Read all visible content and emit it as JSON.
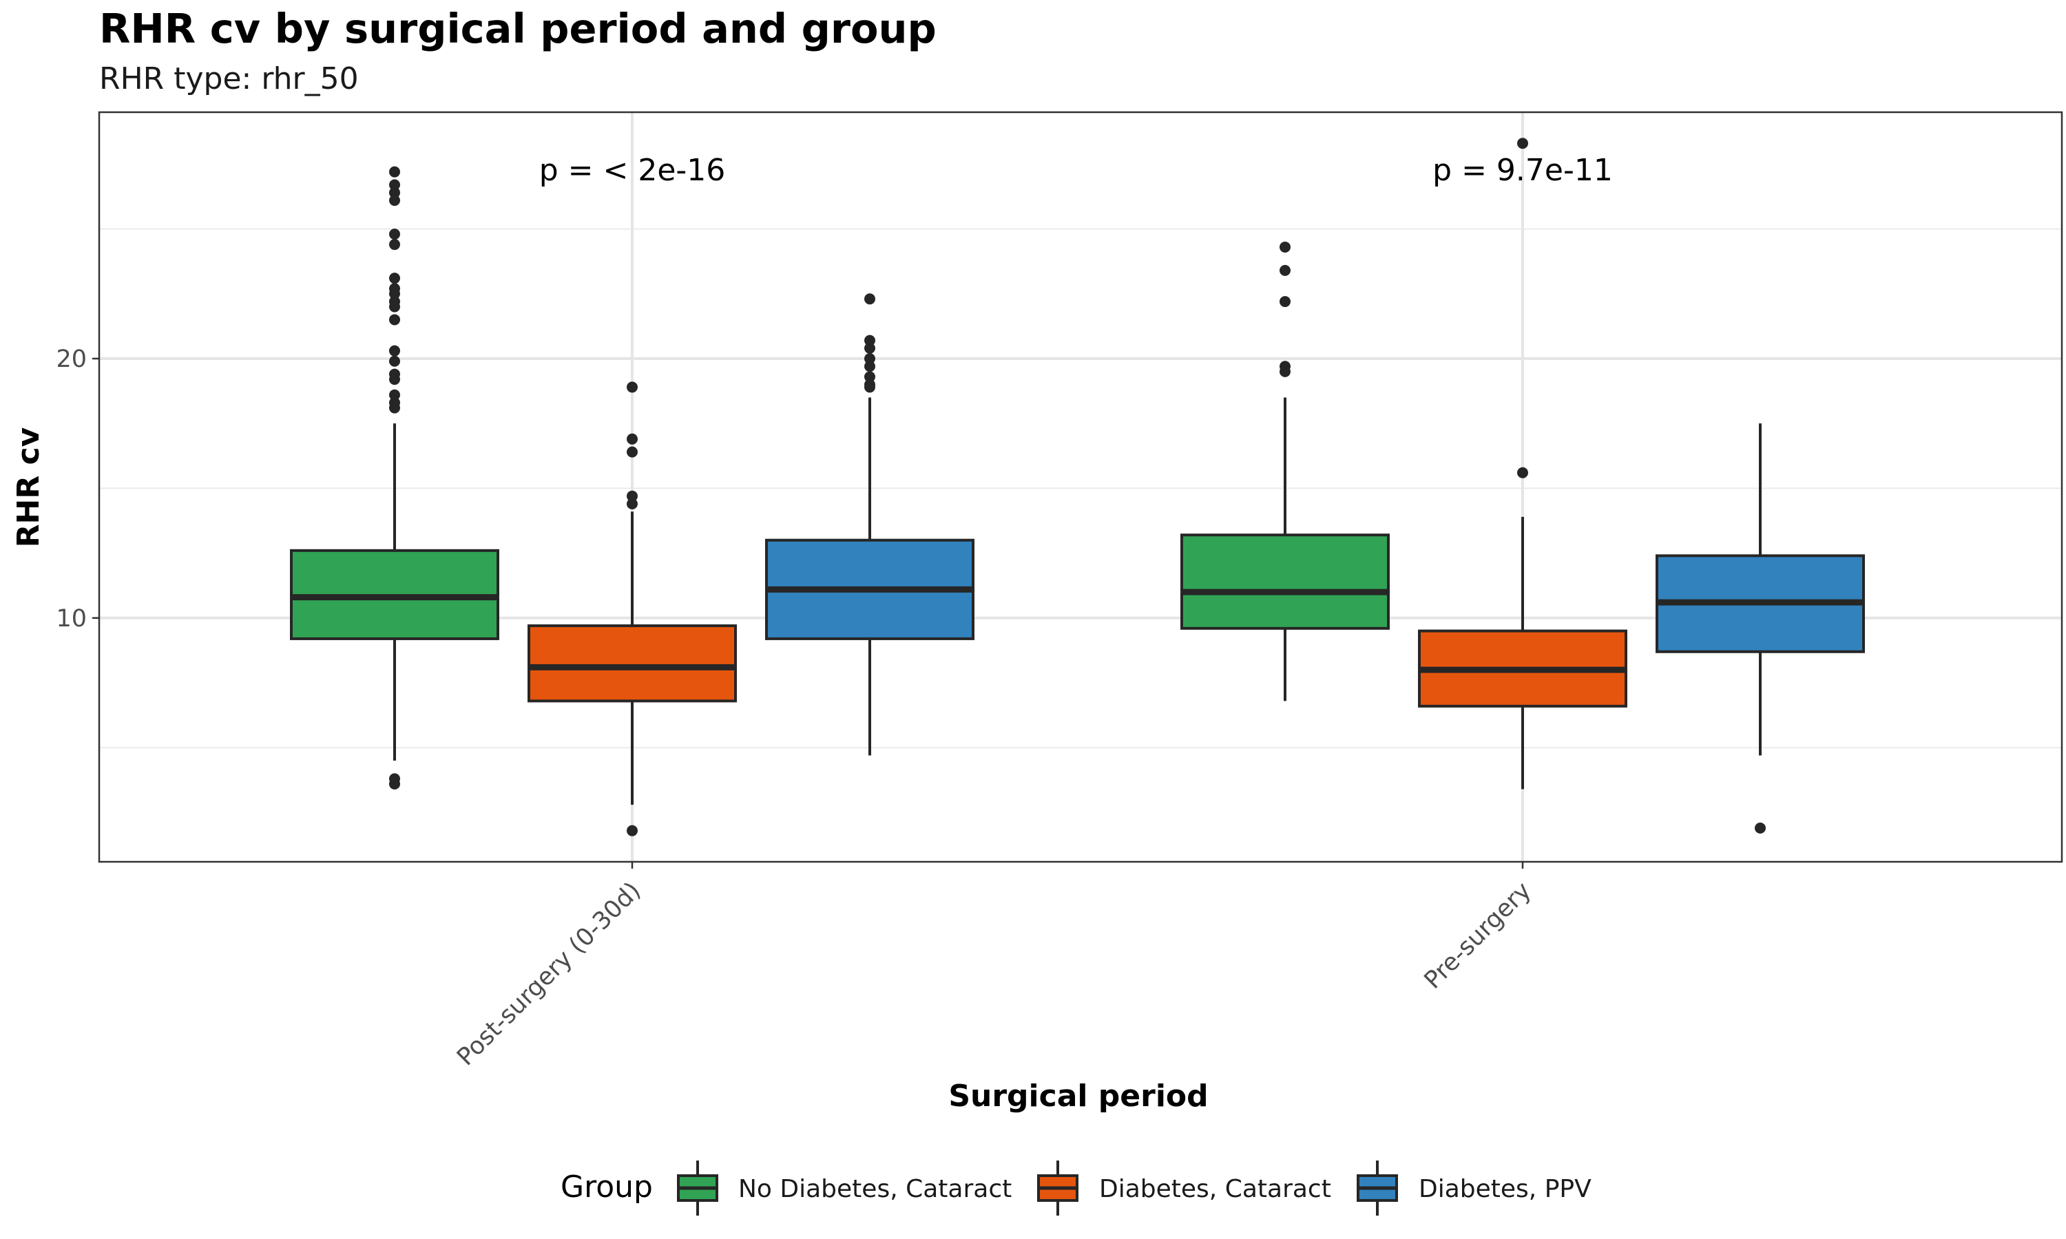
{
  "chart_data": {
    "type": "box",
    "title": "RHR cv by surgical period and group",
    "subtitle": "RHR type: rhr_50",
    "xlabel": "Surgical period",
    "ylabel": "RHR cv",
    "ylim": [
      0.6,
      29.5
    ],
    "y_ticks": [
      10,
      20
    ],
    "grid": true,
    "legend": {
      "title": "Group",
      "position": "bottom"
    },
    "categories": [
      "Post-surgery (0-30d)",
      "Pre-surgery"
    ],
    "series": [
      {
        "name": "No Diabetes, Cataract",
        "color": "#31a354",
        "boxes": [
          {
            "q1": 9.2,
            "median": 10.8,
            "q3": 12.6,
            "whisker_low": 4.5,
            "whisker_high": 17.5,
            "outliers": [
              27.2,
              26.7,
              26.4,
              26.1,
              24.8,
              24.4,
              23.1,
              22.7,
              22.5,
              22.2,
              22.0,
              21.5,
              20.3,
              19.9,
              19.4,
              19.2,
              18.6,
              18.3,
              18.1,
              3.8,
              3.6
            ]
          },
          {
            "q1": 9.6,
            "median": 11.0,
            "q3": 13.2,
            "whisker_low": 6.8,
            "whisker_high": 18.5,
            "outliers": [
              24.3,
              23.4,
              22.2,
              19.7,
              19.5
            ]
          }
        ]
      },
      {
        "name": "Diabetes, Cataract",
        "color": "#e6550d",
        "boxes": [
          {
            "q1": 6.8,
            "median": 8.1,
            "q3": 9.7,
            "whisker_low": 2.8,
            "whisker_high": 14.1,
            "outliers": [
              18.9,
              16.9,
              16.4,
              14.7,
              14.4,
              1.8
            ]
          },
          {
            "q1": 6.6,
            "median": 8.0,
            "q3": 9.5,
            "whisker_low": 3.4,
            "whisker_high": 13.9,
            "outliers": [
              28.3,
              15.6
            ]
          }
        ]
      },
      {
        "name": "Diabetes, PPV",
        "color": "#3182bd",
        "boxes": [
          {
            "q1": 9.2,
            "median": 11.1,
            "q3": 13.0,
            "whisker_low": 4.7,
            "whisker_high": 18.5,
            "outliers": [
              22.3,
              20.7,
              20.4,
              20.0,
              19.7,
              19.3,
              19.0,
              18.9
            ]
          },
          {
            "q1": 8.7,
            "median": 10.6,
            "q3": 12.4,
            "whisker_low": 4.7,
            "whisker_high": 17.5,
            "outliers": [
              1.9
            ]
          }
        ]
      }
    ],
    "annotations": [
      "p = < 2e-16",
      "p = 9.7e-11"
    ]
  }
}
